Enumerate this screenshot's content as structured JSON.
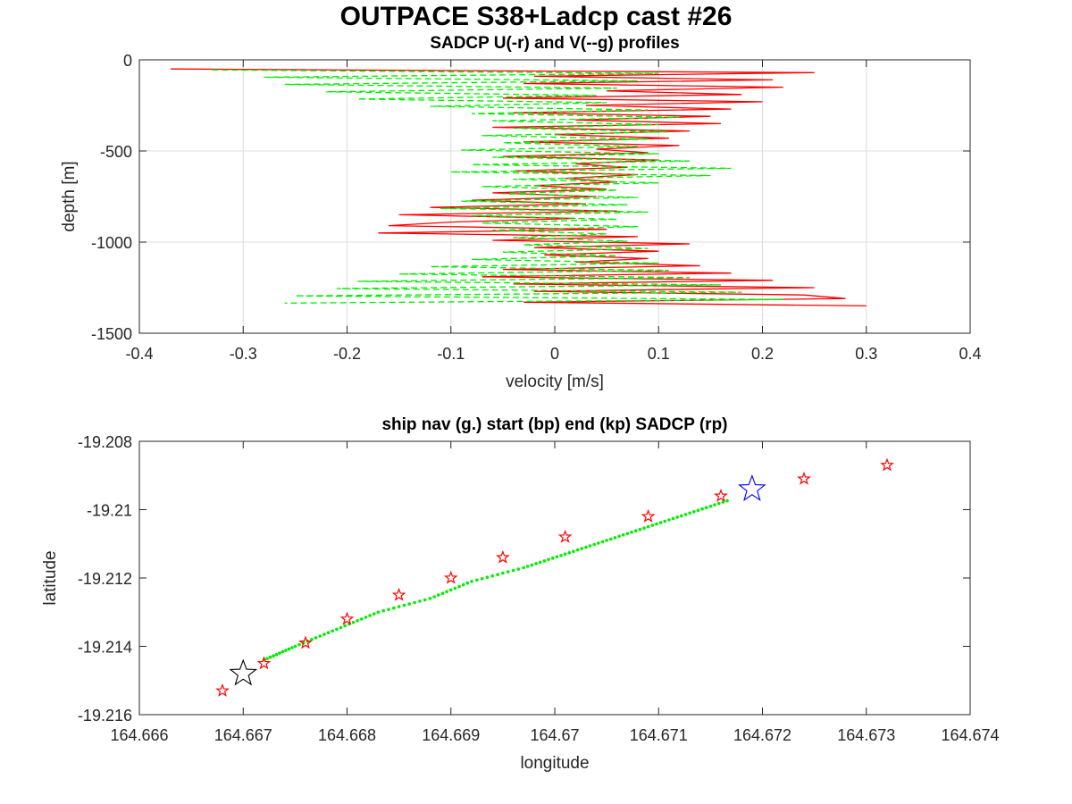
{
  "figure": {
    "title": "OUTPACE S38+Ladcp cast #26"
  },
  "chart_data": [
    {
      "type": "line",
      "title": "SADCP U(-r) and V(--g) profiles",
      "xlabel": "velocity [m/s]",
      "ylabel": "depth [m]",
      "xlim": [
        -0.4,
        0.4
      ],
      "ylim": [
        -1500,
        0
      ],
      "xticks": [
        "-0.4",
        "-0.3",
        "-0.2",
        "-0.1",
        "0",
        "0.1",
        "0.2",
        "0.3",
        "0.4"
      ],
      "yticks": [
        "0",
        "-500",
        "-1000",
        "-1500"
      ],
      "grid": true,
      "series": [
        {
          "color": "#ff0000",
          "style": "solid",
          "depth": [
            -50,
            -70,
            -90,
            -110,
            -130,
            -150,
            -170,
            -190,
            -210,
            -230,
            -250,
            -270,
            -290,
            -310,
            -330,
            -350,
            -370,
            -390,
            -410,
            -430,
            -450,
            -470,
            -490,
            -510,
            -530,
            -550,
            -570,
            -590,
            -610,
            -630,
            -650,
            -670,
            -690,
            -710,
            -730,
            -750,
            -770,
            -790,
            -810,
            -830,
            -850,
            -870,
            -890,
            -910,
            -930,
            -950,
            -970,
            -990,
            -1010,
            -1030,
            -1050,
            -1070,
            -1090,
            -1110,
            -1130,
            -1150,
            -1170,
            -1190,
            -1210,
            -1230,
            -1250,
            -1270,
            -1290,
            -1310,
            -1330,
            -1350
          ],
          "values": [
            -0.37,
            0.25,
            -0.02,
            0.21,
            -0.03,
            0.22,
            0.05,
            0.18,
            -0.05,
            0.2,
            0.03,
            0.17,
            -0.04,
            0.15,
            0.02,
            0.16,
            -0.06,
            0.13,
            0.0,
            0.11,
            -0.03,
            0.12,
            0.04,
            0.09,
            -0.05,
            0.1,
            0.02,
            0.07,
            -0.04,
            0.08,
            0.01,
            0.06,
            -0.02,
            0.05,
            -0.06,
            0.04,
            -0.08,
            0.03,
            -0.12,
            0.06,
            -0.15,
            0.02,
            -0.1,
            -0.16,
            0.05,
            -0.17,
            0.08,
            -0.06,
            0.13,
            -0.02,
            0.1,
            -0.01,
            0.09,
            0.02,
            0.14,
            -0.05,
            0.17,
            -0.07,
            0.21,
            -0.04,
            0.25,
            -0.02,
            0.24,
            0.28,
            -0.03,
            0.3
          ]
        },
        {
          "color": "#00ee00",
          "style": "dashed",
          "depth": [
            -55,
            -75,
            -95,
            -115,
            -135,
            -155,
            -175,
            -195,
            -215,
            -235,
            -255,
            -275,
            -295,
            -315,
            -335,
            -355,
            -375,
            -395,
            -415,
            -435,
            -455,
            -475,
            -495,
            -515,
            -535,
            -555,
            -575,
            -595,
            -615,
            -635,
            -655,
            -675,
            -695,
            -715,
            -735,
            -755,
            -775,
            -795,
            -815,
            -835,
            -855,
            -875,
            -895,
            -915,
            -935,
            -955,
            -975,
            -995,
            -1015,
            -1035,
            -1055,
            -1075,
            -1095,
            -1115,
            -1135,
            -1155,
            -1175,
            -1195,
            -1215,
            -1235,
            -1255,
            -1275,
            -1295,
            -1315,
            -1335
          ],
          "values": [
            -0.33,
            0.1,
            -0.28,
            0.08,
            -0.26,
            0.06,
            -0.22,
            0.04,
            -0.19,
            0.05,
            -0.12,
            0.09,
            -0.08,
            0.12,
            -0.06,
            0.1,
            -0.04,
            0.11,
            -0.07,
            0.09,
            -0.05,
            0.08,
            -0.09,
            0.1,
            -0.06,
            0.13,
            -0.08,
            0.17,
            -0.1,
            0.15,
            -0.04,
            0.1,
            -0.07,
            0.06,
            -0.05,
            0.08,
            -0.09,
            0.07,
            -0.11,
            0.09,
            -0.08,
            0.06,
            -0.07,
            0.08,
            -0.06,
            0.05,
            -0.04,
            0.07,
            -0.03,
            0.09,
            -0.05,
            0.06,
            -0.08,
            0.1,
            -0.12,
            0.11,
            -0.15,
            0.13,
            -0.19,
            0.16,
            -0.21,
            0.18,
            -0.25,
            0.22,
            -0.26
          ]
        }
      ]
    },
    {
      "type": "scatter",
      "title": "ship nav (g.) start (bp) end (kp) SADCP (rp)",
      "xlabel": "longitude",
      "ylabel": "latitude",
      "xlim": [
        164.666,
        164.674
      ],
      "ylim": [
        -19.216,
        -19.208
      ],
      "xticks": [
        "164.666",
        "164.667",
        "164.668",
        "164.669",
        "164.67",
        "164.671",
        "164.672",
        "164.673",
        "164.674"
      ],
      "yticks": [
        "-19.208",
        "-19.21",
        "-19.212",
        "-19.214",
        "-19.216"
      ],
      "grid": false,
      "nav_track": {
        "color": "#00ee00",
        "x": [
          164.6672,
          164.6675,
          164.6679,
          164.6683,
          164.6688,
          164.6692,
          164.6697,
          164.6701,
          164.6705,
          164.6709,
          164.6713,
          164.6717
        ],
        "y": [
          -19.2144,
          -19.214,
          -19.2135,
          -19.213,
          -19.2126,
          -19.2121,
          -19.2117,
          -19.2113,
          -19.2109,
          -19.2105,
          -19.2101,
          -19.2097
        ]
      },
      "sadcp_points": {
        "color": "#ff0000",
        "x": [
          164.6668,
          164.6672,
          164.6676,
          164.668,
          164.6685,
          164.669,
          164.6695,
          164.6701,
          164.6709,
          164.6716,
          164.6724,
          164.6732
        ],
        "y": [
          -19.2153,
          -19.2145,
          -19.2139,
          -19.2132,
          -19.2125,
          -19.212,
          -19.2114,
          -19.2108,
          -19.2102,
          -19.2096,
          -19.2091,
          -19.2087
        ]
      },
      "start": {
        "x": 164.667,
        "y": -19.2148,
        "color": "#000000"
      },
      "end": {
        "x": 164.6719,
        "y": -19.2094,
        "color": "#0000ff"
      }
    }
  ]
}
